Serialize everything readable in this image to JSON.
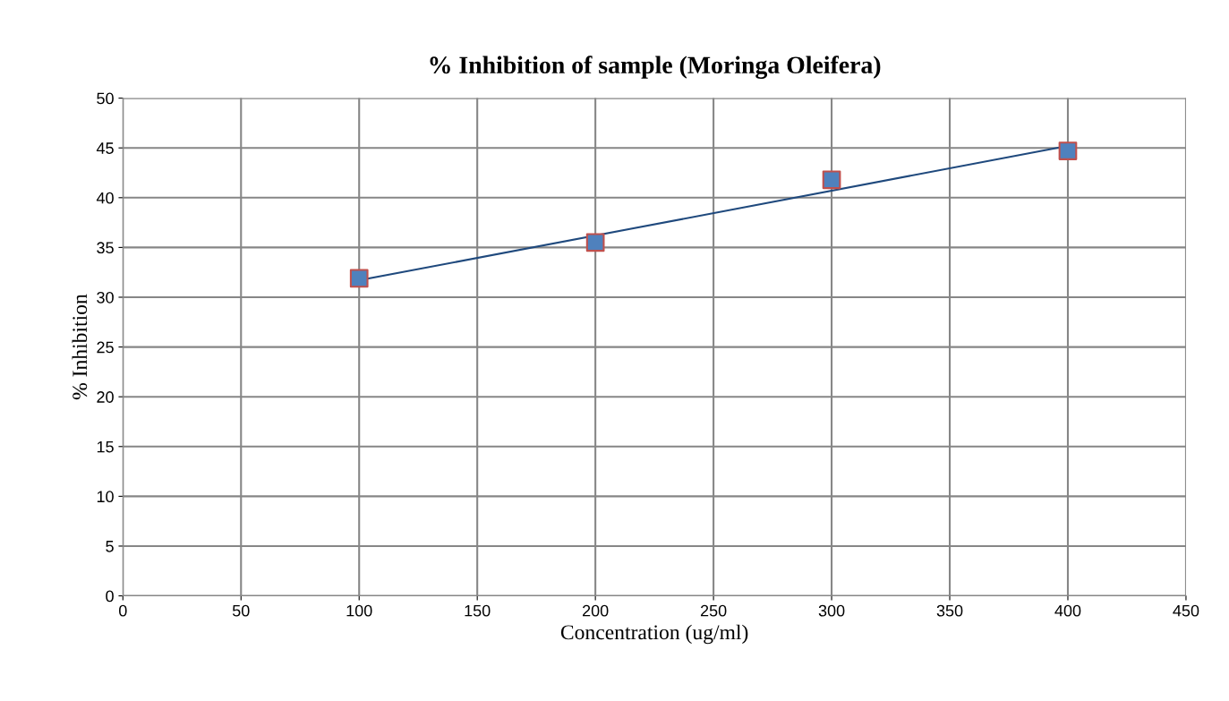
{
  "chart_data": {
    "type": "scatter",
    "title": "% Inhibition of sample (Moringa Oleifera)",
    "xlabel": "Concentration (ug/ml)",
    "ylabel": "% Inhibition",
    "x": [
      100,
      200,
      300,
      400
    ],
    "series": [
      {
        "color": "#4f81bd",
        "values": [
          31.9,
          35.5,
          41.8,
          44.7
        ],
        "marker": "square"
      },
      {
        "type": "line",
        "color": "#1f497d",
        "x": [
          100,
          400
        ],
        "values": [
          31.7,
          45.2
        ],
        "line_style": "solid",
        "marker": "none"
      }
    ],
    "xlim": [
      0,
      450
    ],
    "xticks": [
      0,
      50,
      100,
      150,
      200,
      250,
      300,
      350,
      400,
      450
    ],
    "ylim": [
      0,
      50
    ],
    "yticks": [
      0,
      5,
      10,
      15,
      20,
      25,
      30,
      35,
      40,
      45,
      50
    ],
    "grid": true
  }
}
